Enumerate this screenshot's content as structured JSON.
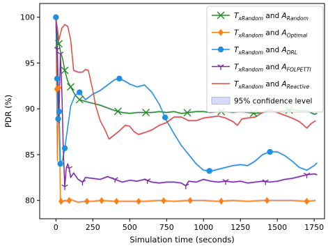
{
  "chart_data": {
    "type": "line",
    "xlabel": "Simulation time (seconds)",
    "ylabel": "PDR (%)",
    "xlim": [
      -110,
      1820
    ],
    "ylim": [
      78,
      101.5
    ],
    "xticks": [
      0,
      250,
      500,
      750,
      1000,
      1250,
      1500,
      1750
    ],
    "yticks": [
      80,
      85,
      90,
      95,
      100
    ],
    "grid": false,
    "legend_position": "top-right",
    "confidence_label": "95% confidence level",
    "series": [
      {
        "name_main": "TxRandom and A",
        "name_sub": "Random",
        "color": "#228b22",
        "marker": "x",
        "x": [
          0,
          15,
          30,
          45,
          60,
          80,
          100,
          130,
          160,
          200,
          250,
          300,
          350,
          400,
          450,
          500,
          550,
          600,
          650,
          700,
          750,
          800,
          850,
          900,
          950,
          1000,
          1050,
          1100,
          1150,
          1200,
          1250,
          1300,
          1350,
          1400,
          1450,
          1500,
          1550,
          1600,
          1650,
          1700,
          1750,
          1770
        ],
        "y": [
          100,
          97.5,
          96.3,
          95.5,
          94.2,
          93.0,
          92.4,
          91.5,
          91.0,
          90.8,
          90.6,
          90.4,
          90.1,
          89.8,
          89.6,
          89.5,
          89.6,
          89.6,
          89.6,
          89.7,
          89.6,
          89.7,
          89.5,
          89.6,
          89.7,
          89.7,
          89.6,
          89.7,
          89.7,
          89.6,
          89.7,
          89.6,
          89.5,
          89.6,
          89.8,
          89.7,
          89.8,
          89.9,
          89.8,
          89.8,
          89.4,
          89.5
        ],
        "marker_x": [
          20,
          60,
          100,
          160,
          420,
          610,
          890,
          1120,
          1340,
          1580
        ]
      },
      {
        "name_main": "TxRandom and A",
        "name_sub": "Optimal",
        "color": "#ff7f0e",
        "marker": "diamond",
        "x": [
          0,
          10,
          20,
          30,
          40,
          60,
          80,
          100,
          150,
          200,
          250,
          300,
          400,
          500,
          600,
          700,
          800,
          900,
          1000,
          1100,
          1200,
          1300,
          1400,
          1500,
          1600,
          1700,
          1760
        ],
        "y": [
          100,
          84.3,
          92.3,
          80.0,
          79.8,
          80.0,
          79.9,
          80.1,
          79.8,
          79.9,
          79.9,
          80.0,
          79.9,
          79.9,
          79.9,
          80.0,
          79.9,
          80.0,
          80.0,
          79.9,
          80.0,
          79.9,
          80.0,
          80.0,
          80.0,
          79.9,
          80.0
        ],
        "marker_x": [
          5,
          20,
          35,
          90,
          210,
          310,
          410,
          560,
          730,
          910,
          1120,
          1430,
          1700
        ]
      },
      {
        "name_main": "TxRandom and A",
        "name_sub": "DRL",
        "color": "#1f8fe0",
        "marker": "circle",
        "x": [
          0,
          8,
          15,
          22,
          30,
          45,
          60,
          80,
          100,
          130,
          160,
          200,
          250,
          300,
          350,
          400,
          430,
          470,
          500,
          550,
          600,
          650,
          700,
          750,
          800,
          850,
          900,
          950,
          1000,
          1050,
          1100,
          1150,
          1200,
          1250,
          1300,
          1350,
          1400,
          1450,
          1500,
          1550,
          1600,
          1650,
          1700,
          1750,
          1770
        ],
        "y": [
          100,
          93.3,
          88.9,
          89.7,
          84.0,
          84.4,
          85.7,
          88.0,
          90.3,
          91.5,
          91.8,
          91.0,
          91.6,
          92.0,
          92.6,
          93.2,
          93.3,
          93.0,
          92.7,
          92.4,
          92.6,
          91.8,
          90.5,
          88.7,
          87.3,
          86.0,
          85.0,
          84.0,
          83.3,
          83.2,
          83.4,
          83.6,
          83.8,
          83.9,
          83.8,
          84.3,
          85.0,
          85.3,
          85.3,
          84.9,
          84.3,
          83.6,
          83.3,
          83.8,
          84.1
        ],
        "marker_x": [
          0,
          8,
          15,
          22,
          30,
          60,
          160,
          430,
          740,
          1040,
          1450
        ]
      },
      {
        "name_main": "TxRandom and A",
        "name_sub": "FOLPETTI",
        "color": "#7b2aa0",
        "marker": "tri",
        "x": [
          0,
          10,
          20,
          30,
          40,
          50,
          60,
          70,
          80,
          90,
          100,
          120,
          150,
          180,
          200,
          250,
          300,
          350,
          400,
          450,
          500,
          550,
          600,
          650,
          700,
          750,
          800,
          850,
          880,
          900,
          950,
          1000,
          1050,
          1100,
          1150,
          1200,
          1250,
          1300,
          1350,
          1400,
          1450,
          1500,
          1550,
          1600,
          1650,
          1700,
          1750,
          1770
        ],
        "y": [
          100,
          96.5,
          88.5,
          96.0,
          92.0,
          85.5,
          81.5,
          83.5,
          84.0,
          83.5,
          82.5,
          83.0,
          82.3,
          82.0,
          82.5,
          82.4,
          82.3,
          82.6,
          82.3,
          82.0,
          82.2,
          82.1,
          82.3,
          82.0,
          81.9,
          82.0,
          82.0,
          81.9,
          81.6,
          82.1,
          82.0,
          82.3,
          82.1,
          82.0,
          82.1,
          82.0,
          82.1,
          81.9,
          82.0,
          82.1,
          82.0,
          82.1,
          82.3,
          82.4,
          82.6,
          82.8,
          82.9,
          82.8
        ],
        "marker_x": [
          10,
          30,
          60,
          90,
          180,
          400,
          620,
          880,
          1150,
          1420,
          1700
        ]
      },
      {
        "name_main": "TxRandom and A",
        "name_sub": "Reactive",
        "color": "#e24a3b",
        "marker": "none",
        "x": [
          0,
          20,
          40,
          60,
          80,
          100,
          120,
          150,
          180,
          200,
          220,
          250,
          270,
          300,
          330,
          360,
          400,
          430,
          470,
          500,
          530,
          560,
          600,
          650,
          700,
          750,
          800,
          850,
          900,
          950,
          1000,
          1050,
          1100,
          1150,
          1200,
          1230,
          1260,
          1300,
          1350,
          1400,
          1450,
          1500,
          1550,
          1600,
          1650,
          1700,
          1730,
          1760
        ],
        "y": [
          100,
          97.5,
          98.8,
          99.2,
          99.0,
          97.5,
          94.2,
          94.0,
          94.0,
          94.3,
          94.2,
          92.0,
          90.3,
          88.7,
          87.8,
          86.7,
          87.2,
          87.6,
          88.2,
          88.1,
          87.5,
          87.2,
          87.4,
          87.7,
          88.2,
          88.5,
          89.1,
          89.1,
          88.7,
          88.7,
          89.0,
          89.1,
          89.2,
          89.0,
          88.6,
          88.2,
          88.9,
          89.0,
          89.1,
          89.6,
          89.9,
          89.6,
          89.3,
          89.0,
          88.6,
          87.9,
          88.4,
          88.7
        ],
        "marker_x": []
      }
    ]
  }
}
